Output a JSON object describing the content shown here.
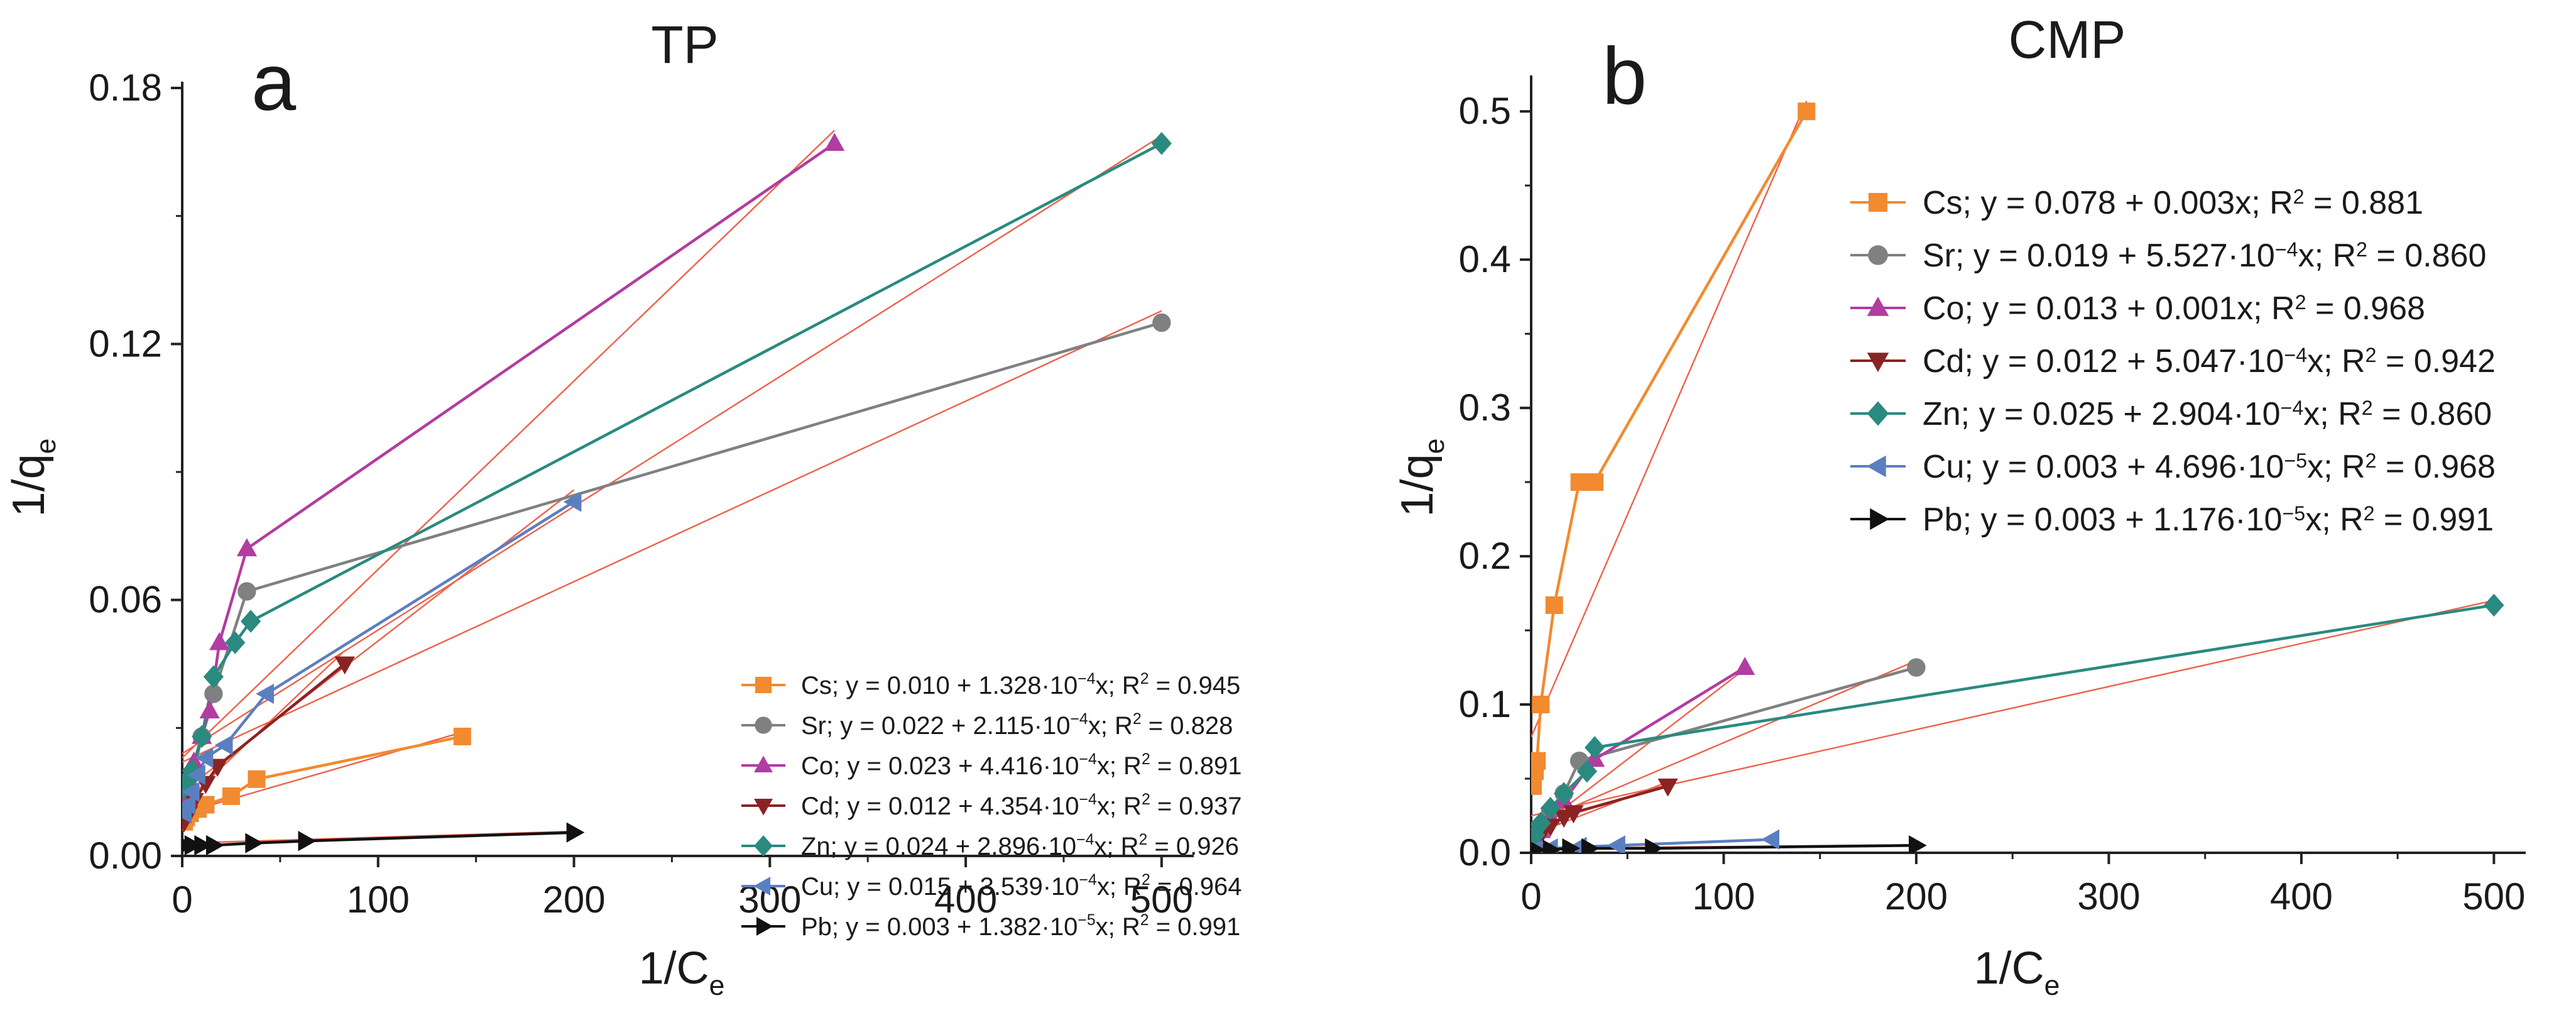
{
  "chart_data": [
    {
      "type": "scatter",
      "panel_letter": "a",
      "title": "TP",
      "xlabel": "1/C",
      "xlabel_sub": "e",
      "ylabel": "1/q",
      "ylabel_sub": "e",
      "xlim": [
        0,
        510
      ],
      "ylim": [
        0,
        0.18
      ],
      "xticks": [
        0,
        100,
        200,
        300,
        400,
        500
      ],
      "xtick_labels": [
        "0",
        "100",
        "200",
        "300",
        "400",
        "500"
      ],
      "yticks": [
        0,
        0.06,
        0.12,
        0.18
      ],
      "ytick_labels": [
        "0.00",
        "0.06",
        "0.12",
        "0.18"
      ],
      "legend_position": "bottom-right",
      "series": [
        {
          "name": "Cs",
          "color": "#f28a30",
          "marker": "square",
          "legend": "Cs; y = 0.010 + 1.328·10",
          "legend_exp": "−4",
          "legend_tail": "x; R",
          "legend_r2": "2",
          "legend_end": " = 0.945",
          "x": [
            1,
            2,
            4,
            8,
            12,
            25,
            38,
            143
          ],
          "y": [
            0.008,
            0.009,
            0.01,
            0.011,
            0.012,
            0.014,
            0.018,
            0.028
          ],
          "fit": [
            0.01,
            0.0001328
          ]
        },
        {
          "name": "Sr",
          "color": "#808080",
          "marker": "circle",
          "legend": "Sr; y = 0.022 + 2.115·10",
          "legend_exp": "−4",
          "legend_tail": "x; R",
          "legend_r2": "2",
          "legend_end": " = 0.828",
          "x": [
            1,
            3,
            6,
            10,
            16,
            33,
            500
          ],
          "y": [
            0.01,
            0.014,
            0.02,
            0.028,
            0.038,
            0.062,
            0.125
          ],
          "fit": [
            0.022,
            0.0002115
          ]
        },
        {
          "name": "Co",
          "color": "#b23ca0",
          "marker": "triangle-up",
          "legend": "Co; y = 0.023 + 4.416·10",
          "legend_exp": "−4",
          "legend_tail": "x; R",
          "legend_r2": "2",
          "legend_end": " = 0.891",
          "x": [
            1,
            3,
            6,
            10,
            14,
            19,
            33,
            333
          ],
          "y": [
            0.014,
            0.018,
            0.022,
            0.028,
            0.034,
            0.05,
            0.072,
            0.167
          ],
          "fit": [
            0.023,
            0.0004416
          ]
        },
        {
          "name": "Cd",
          "color": "#8b2323",
          "marker": "triangle-down",
          "legend": "Cd; y = 0.012 + 4.354·10",
          "legend_exp": "−4",
          "legend_tail": "x; R",
          "legend_r2": "2",
          "legend_end": " = 0.937",
          "x": [
            1,
            3,
            6,
            12,
            18,
            83
          ],
          "y": [
            0.008,
            0.01,
            0.013,
            0.017,
            0.021,
            0.045
          ],
          "fit": [
            0.012,
            0.0004354
          ]
        },
        {
          "name": "Zn",
          "color": "#2a8a80",
          "marker": "diamond",
          "legend": "Zn; y = 0.024 + 2.896·10",
          "legend_exp": "−4",
          "legend_tail": "x; R",
          "legend_r2": "2",
          "legend_end": " = 0.926",
          "x": [
            1,
            3,
            5,
            10,
            16,
            27,
            35,
            500
          ],
          "y": [
            0.016,
            0.018,
            0.02,
            0.028,
            0.042,
            0.05,
            0.055,
            0.167
          ],
          "fit": [
            0.024,
            0.0002896
          ]
        },
        {
          "name": "Cu",
          "color": "#5a7fc0",
          "marker": "triangle-left",
          "legend": "Cu; y = 0.015 + 3.539·10",
          "legend_exp": "−4",
          "legend_tail": "x; R",
          "legend_r2": "2",
          "legend_end": " = 0.964",
          "x": [
            1,
            3,
            5,
            8,
            12,
            22,
            43,
            200
          ],
          "y": [
            0.01,
            0.012,
            0.015,
            0.019,
            0.023,
            0.026,
            0.038,
            0.083
          ],
          "fit": [
            0.015,
            0.0003539
          ]
        },
        {
          "name": "Pb",
          "color": "#111111",
          "marker": "triangle-right",
          "legend": "Pb; y = 0.003 + 1.382·10",
          "legend_exp": "−5",
          "legend_tail": "x; R",
          "legend_r2": "2",
          "legend_end": " = 0.991",
          "x": [
            1,
            5,
            10,
            16,
            36,
            63,
            200
          ],
          "y": [
            0.0025,
            0.0025,
            0.0025,
            0.0025,
            0.003,
            0.0035,
            0.0055
          ],
          "fit": [
            0.003,
            1.382e-05
          ]
        }
      ]
    },
    {
      "type": "scatter",
      "panel_letter": "b",
      "title": "CMP",
      "xlabel": "1/C",
      "xlabel_sub": "e",
      "ylabel": "1/q",
      "ylabel_sub": "e",
      "xlim": [
        0,
        510
      ],
      "ylim": [
        0,
        0.52
      ],
      "xticks": [
        0,
        100,
        200,
        300,
        400,
        500
      ],
      "xtick_labels": [
        "0",
        "100",
        "200",
        "300",
        "400",
        "500"
      ],
      "yticks": [
        0,
        0.1,
        0.2,
        0.3,
        0.4,
        0.5
      ],
      "ytick_labels": [
        "0.0",
        "0.1",
        "0.2",
        "0.3",
        "0.4",
        "0.5"
      ],
      "legend_position": "top-right",
      "series": [
        {
          "name": "Cs",
          "color": "#f28a30",
          "marker": "square",
          "legend": "Cs; y = 0.078 + 0.003x; R",
          "legend_exp": "",
          "legend_tail": "",
          "legend_r2": "2",
          "legend_end": " = 0.881",
          "x": [
            1,
            2,
            3,
            5,
            12,
            25,
            33,
            143
          ],
          "y": [
            0.045,
            0.055,
            0.062,
            0.1,
            0.167,
            0.25,
            0.25,
            0.5
          ],
          "fit": [
            0.078,
            0.003
          ]
        },
        {
          "name": "Sr",
          "color": "#808080",
          "marker": "circle",
          "legend": "Sr; y = 0.019 + 5.527·10",
          "legend_exp": "−4",
          "legend_tail": "x; R",
          "legend_r2": "2",
          "legend_end": " = 0.860",
          "x": [
            2,
            5,
            10,
            17,
            25,
            200
          ],
          "y": [
            0.01,
            0.018,
            0.028,
            0.04,
            0.062,
            0.125
          ],
          "fit": [
            0.019,
            0.0005527
          ]
        },
        {
          "name": "Co",
          "color": "#b23ca0",
          "marker": "triangle-up",
          "legend": "Co; y = 0.013 + 0.001x; R",
          "legend_exp": "",
          "legend_tail": "",
          "legend_r2": "2",
          "legend_end": " = 0.968",
          "x": [
            2,
            5,
            10,
            17,
            33,
            111
          ],
          "y": [
            0.008,
            0.015,
            0.024,
            0.035,
            0.063,
            0.125
          ],
          "fit": [
            0.013,
            0.001
          ]
        },
        {
          "name": "Cd",
          "color": "#8b2323",
          "marker": "triangle-down",
          "legend": "Cd; y = 0.012 + 5.047·10",
          "legend_exp": "−4",
          "legend_tail": "x; R",
          "legend_r2": "2",
          "legend_end": " = 0.942",
          "x": [
            2,
            5,
            10,
            17,
            22,
            71
          ],
          "y": [
            0.007,
            0.012,
            0.018,
            0.024,
            0.027,
            0.045
          ],
          "fit": [
            0.012,
            0.0005047
          ]
        },
        {
          "name": "Zn",
          "color": "#2a8a80",
          "marker": "diamond",
          "legend": "Zn; y = 0.025 + 2.904·10",
          "legend_exp": "−4",
          "legend_tail": "x; R",
          "legend_r2": "2",
          "legend_end": " = 0.860",
          "x": [
            2,
            5,
            10,
            17,
            29,
            33,
            500
          ],
          "y": [
            0.012,
            0.02,
            0.03,
            0.04,
            0.055,
            0.071,
            0.167
          ],
          "fit": [
            0.025,
            0.0002904
          ]
        },
        {
          "name": "Cu",
          "color": "#5a7fc0",
          "marker": "triangle-left",
          "legend": "Cu; y = 0.003 + 4.696·10",
          "legend_exp": "−5",
          "legend_tail": "x; R",
          "legend_r2": "2",
          "legend_end": " = 0.968",
          "x": [
            2,
            10,
            25,
            45,
            125
          ],
          "y": [
            0.002,
            0.003,
            0.004,
            0.005,
            0.009
          ],
          "fit": [
            0.003,
            4.696e-05
          ]
        },
        {
          "name": "Pb",
          "color": "#111111",
          "marker": "triangle-right",
          "legend": "Pb; y = 0.003 + 1.176·10",
          "legend_exp": "−5",
          "legend_tail": "x; R",
          "legend_r2": "2",
          "legend_end": " = 0.991",
          "x": [
            2,
            10,
            20,
            30,
            63,
            200
          ],
          "y": [
            0.002,
            0.002,
            0.003,
            0.003,
            0.003,
            0.005
          ],
          "fit": [
            0.003,
            1.176e-05
          ]
        }
      ]
    }
  ]
}
